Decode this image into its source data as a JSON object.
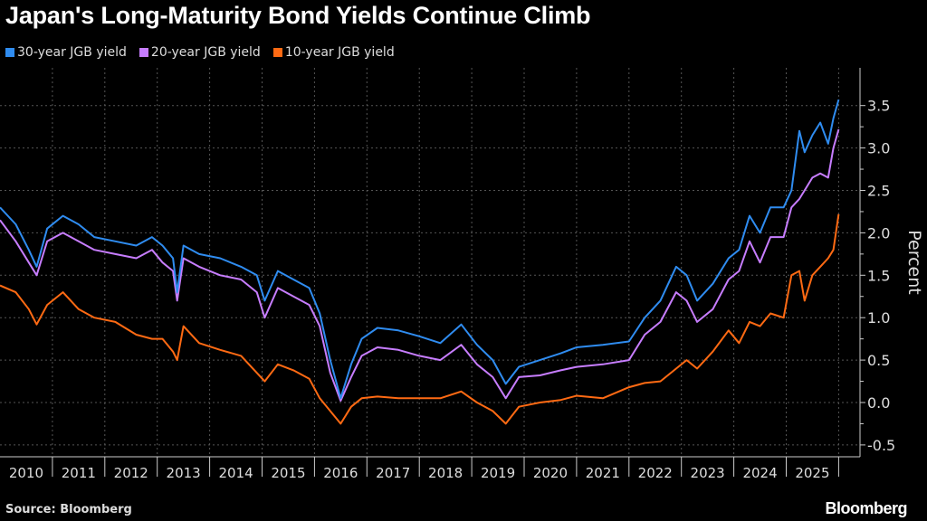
{
  "chart_data": {
    "type": "line",
    "title": "Japan's Long-Maturity Bond Yields Continue Climb",
    "ylabel": "Percent",
    "xlabel": "",
    "ylim": [
      -0.7,
      3.9
    ],
    "xlim": [
      2010,
      2026
    ],
    "yticks": [
      -0.5,
      0.0,
      0.5,
      1.0,
      1.5,
      2.0,
      2.5,
      3.0,
      3.5
    ],
    "ytick_labels": [
      "-0.5",
      "0.0",
      "0.5",
      "1.0",
      "1.5",
      "2.0",
      "2.5",
      "3.0",
      "3.5"
    ],
    "xtick_labels": [
      "2010",
      "2011",
      "2012",
      "2013",
      "2014",
      "2015",
      "2016",
      "2017",
      "2018",
      "2019",
      "2020",
      "2021",
      "2022",
      "2023",
      "2024",
      "2025"
    ],
    "grid": true,
    "legend": "top-left",
    "series": [
      {
        "name": "30-year JGB yield",
        "color": "#2f8cf0",
        "x": [
          2010.0,
          2010.3,
          2010.55,
          2010.7,
          2010.9,
          2011.2,
          2011.5,
          2011.8,
          2012.2,
          2012.6,
          2012.9,
          2013.1,
          2013.3,
          2013.38,
          2013.5,
          2013.8,
          2014.2,
          2014.6,
          2014.9,
          2015.05,
          2015.3,
          2015.6,
          2015.9,
          2016.1,
          2016.3,
          2016.5,
          2016.7,
          2016.9,
          2017.2,
          2017.6,
          2018.0,
          2018.4,
          2018.8,
          2019.1,
          2019.4,
          2019.65,
          2019.9,
          2020.3,
          2020.7,
          2021.0,
          2021.5,
          2022.0,
          2022.3,
          2022.6,
          2022.9,
          2023.1,
          2023.3,
          2023.6,
          2023.9,
          2024.1,
          2024.3,
          2024.5,
          2024.7,
          2024.95,
          2025.1,
          2025.25,
          2025.35,
          2025.5,
          2025.65,
          2025.8,
          2025.9,
          2026.0
        ],
        "y": [
          2.3,
          2.1,
          1.8,
          1.6,
          2.05,
          2.2,
          2.1,
          1.95,
          1.9,
          1.85,
          1.95,
          1.85,
          1.7,
          1.3,
          1.85,
          1.75,
          1.7,
          1.6,
          1.5,
          1.2,
          1.55,
          1.45,
          1.35,
          1.05,
          0.5,
          0.05,
          0.45,
          0.75,
          0.88,
          0.85,
          0.78,
          0.7,
          0.92,
          0.68,
          0.5,
          0.22,
          0.42,
          0.5,
          0.58,
          0.65,
          0.68,
          0.72,
          1.0,
          1.2,
          1.6,
          1.5,
          1.2,
          1.4,
          1.7,
          1.8,
          2.2,
          2.0,
          2.3,
          2.3,
          2.5,
          3.2,
          2.95,
          3.15,
          3.3,
          3.05,
          3.35,
          3.57
        ]
      },
      {
        "name": "20-year JGB yield",
        "color": "#c77dff",
        "x": [
          2010.0,
          2010.3,
          2010.55,
          2010.7,
          2010.9,
          2011.2,
          2011.5,
          2011.8,
          2012.2,
          2012.6,
          2012.9,
          2013.1,
          2013.3,
          2013.38,
          2013.5,
          2013.8,
          2014.2,
          2014.6,
          2014.9,
          2015.05,
          2015.3,
          2015.6,
          2015.9,
          2016.1,
          2016.3,
          2016.5,
          2016.7,
          2016.9,
          2017.2,
          2017.6,
          2018.0,
          2018.4,
          2018.8,
          2019.1,
          2019.4,
          2019.65,
          2019.9,
          2020.3,
          2020.7,
          2021.0,
          2021.5,
          2022.0,
          2022.3,
          2022.6,
          2022.9,
          2023.1,
          2023.3,
          2023.6,
          2023.9,
          2024.1,
          2024.3,
          2024.5,
          2024.7,
          2024.95,
          2025.1,
          2025.25,
          2025.35,
          2025.5,
          2025.65,
          2025.8,
          2025.9,
          2026.0
        ],
        "y": [
          2.15,
          1.9,
          1.65,
          1.5,
          1.9,
          2.0,
          1.9,
          1.8,
          1.75,
          1.7,
          1.8,
          1.65,
          1.55,
          1.2,
          1.7,
          1.6,
          1.5,
          1.45,
          1.3,
          1.0,
          1.35,
          1.25,
          1.15,
          0.9,
          0.35,
          0.02,
          0.3,
          0.55,
          0.65,
          0.62,
          0.55,
          0.5,
          0.68,
          0.45,
          0.3,
          0.05,
          0.3,
          0.32,
          0.38,
          0.42,
          0.45,
          0.5,
          0.8,
          0.95,
          1.3,
          1.2,
          0.95,
          1.1,
          1.45,
          1.55,
          1.9,
          1.65,
          1.95,
          1.95,
          2.3,
          2.4,
          2.5,
          2.65,
          2.7,
          2.65,
          3.0,
          3.22
        ]
      },
      {
        "name": "10-year JGB yield",
        "color": "#ff6a13",
        "x": [
          2010.0,
          2010.3,
          2010.55,
          2010.7,
          2010.9,
          2011.2,
          2011.5,
          2011.8,
          2012.2,
          2012.6,
          2012.9,
          2013.1,
          2013.3,
          2013.38,
          2013.5,
          2013.8,
          2014.2,
          2014.6,
          2014.9,
          2015.05,
          2015.3,
          2015.6,
          2015.9,
          2016.1,
          2016.3,
          2016.5,
          2016.7,
          2016.9,
          2017.2,
          2017.6,
          2018.0,
          2018.4,
          2018.8,
          2019.1,
          2019.4,
          2019.65,
          2019.9,
          2020.3,
          2020.7,
          2021.0,
          2021.5,
          2022.0,
          2022.3,
          2022.6,
          2022.9,
          2023.1,
          2023.3,
          2023.6,
          2023.9,
          2024.1,
          2024.3,
          2024.5,
          2024.7,
          2024.95,
          2025.1,
          2025.25,
          2025.35,
          2025.5,
          2025.65,
          2025.8,
          2025.9,
          2026.0
        ],
        "y": [
          1.38,
          1.3,
          1.1,
          0.92,
          1.15,
          1.3,
          1.1,
          1.0,
          0.95,
          0.8,
          0.75,
          0.75,
          0.6,
          0.5,
          0.9,
          0.7,
          0.62,
          0.55,
          0.35,
          0.25,
          0.45,
          0.38,
          0.28,
          0.05,
          -0.1,
          -0.25,
          -0.05,
          0.05,
          0.07,
          0.05,
          0.05,
          0.05,
          0.13,
          0.0,
          -0.1,
          -0.25,
          -0.05,
          0.0,
          0.03,
          0.08,
          0.05,
          0.18,
          0.23,
          0.25,
          0.4,
          0.5,
          0.4,
          0.6,
          0.85,
          0.7,
          0.95,
          0.9,
          1.05,
          1.0,
          1.5,
          1.55,
          1.2,
          1.5,
          1.6,
          1.7,
          1.8,
          2.22
        ]
      }
    ]
  },
  "source": "Source: Bloomberg",
  "logo": "Bloomberg"
}
